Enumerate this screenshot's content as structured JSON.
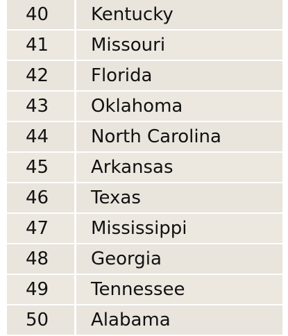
{
  "table": {
    "rows": [
      {
        "rank": "40",
        "state": "Kentucky"
      },
      {
        "rank": "41",
        "state": "Missouri"
      },
      {
        "rank": "42",
        "state": "Florida"
      },
      {
        "rank": "43",
        "state": "Oklahoma"
      },
      {
        "rank": "44",
        "state": "North Carolina"
      },
      {
        "rank": "45",
        "state": "Arkansas"
      },
      {
        "rank": "46",
        "state": "Texas"
      },
      {
        "rank": "47",
        "state": "Mississippi"
      },
      {
        "rank": "48",
        "state": "Georgia"
      },
      {
        "rank": "49",
        "state": "Tennessee"
      },
      {
        "rank": "50",
        "state": "Alabama"
      }
    ]
  },
  "colors": {
    "row_background": "#e9e4dc",
    "text": "#111111",
    "cell_border": "#ffffff"
  }
}
